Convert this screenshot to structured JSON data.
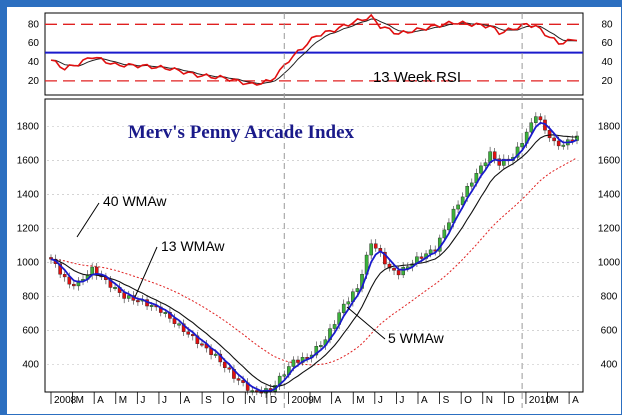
{
  "chart_data": {
    "type": "candlestick",
    "title": "Merv's Penny Arcade Index",
    "time_axis": {
      "labels": [
        "2008",
        "M",
        "A",
        "M",
        "J",
        "J",
        "A",
        "S",
        "O",
        "N",
        "D",
        "2009",
        "M",
        "A",
        "M",
        "J",
        "J",
        "A",
        "S",
        "O",
        "N",
        "D",
        "2010",
        "M",
        "A"
      ],
      "year_labels": [
        "2008",
        "2009",
        "2010"
      ],
      "weeks": 116
    },
    "price_axis": {
      "ticks": [
        400,
        600,
        800,
        1000,
        1200,
        1400,
        1600,
        1800
      ],
      "ylim": [
        240,
        1960
      ]
    },
    "rsi_axis": {
      "label": "13 Week RSI",
      "ticks": [
        20,
        40,
        60,
        80
      ],
      "ylim": [
        5,
        92
      ],
      "reference_lines": {
        "dashed_red": [
          20,
          80
        ],
        "solid_blue": 50
      }
    },
    "annotations": [
      {
        "text": "40 WMAw"
      },
      {
        "text": "13 WMAw"
      },
      {
        "text": "5 WMAw"
      }
    ],
    "colors": {
      "up": "#3bb03b",
      "down": "#e01010",
      "wma5": "#1a1acc",
      "wma13": "#111111",
      "wma40": "#e02020",
      "rsi": "#e01010",
      "rsi_avg": "#222222",
      "frame": "#2c6fc0"
    },
    "series": {
      "close_keypoints": [
        {
          "week": 0,
          "value": 1020
        },
        {
          "week": 4,
          "value": 870
        },
        {
          "week": 6,
          "value": 880
        },
        {
          "week": 9,
          "value": 960
        },
        {
          "week": 12,
          "value": 890
        },
        {
          "week": 16,
          "value": 800
        },
        {
          "week": 20,
          "value": 770
        },
        {
          "week": 24,
          "value": 720
        },
        {
          "week": 30,
          "value": 580
        },
        {
          "week": 36,
          "value": 450
        },
        {
          "week": 40,
          "value": 330
        },
        {
          "week": 44,
          "value": 240
        },
        {
          "week": 48,
          "value": 250
        },
        {
          "week": 50,
          "value": 320
        },
        {
          "week": 53,
          "value": 420
        },
        {
          "week": 56,
          "value": 440
        },
        {
          "week": 60,
          "value": 550
        },
        {
          "week": 64,
          "value": 750
        },
        {
          "week": 67,
          "value": 850
        },
        {
          "week": 70,
          "value": 1120
        },
        {
          "week": 72,
          "value": 1050
        },
        {
          "week": 74,
          "value": 960
        },
        {
          "week": 76,
          "value": 940
        },
        {
          "week": 80,
          "value": 1020
        },
        {
          "week": 84,
          "value": 1080
        },
        {
          "week": 88,
          "value": 1300
        },
        {
          "week": 92,
          "value": 1480
        },
        {
          "week": 96,
          "value": 1640
        },
        {
          "week": 98,
          "value": 1580
        },
        {
          "week": 101,
          "value": 1620
        },
        {
          "week": 104,
          "value": 1760
        },
        {
          "week": 106,
          "value": 1870
        },
        {
          "week": 108,
          "value": 1780
        },
        {
          "week": 110,
          "value": 1700
        },
        {
          "week": 112,
          "value": 1690
        },
        {
          "week": 114,
          "value": 1730
        },
        {
          "week": 115,
          "value": 1735
        }
      ],
      "rsi_keypoints": [
        {
          "week": 0,
          "value": 42
        },
        {
          "week": 3,
          "value": 33
        },
        {
          "week": 6,
          "value": 38
        },
        {
          "week": 9,
          "value": 46
        },
        {
          "week": 14,
          "value": 37
        },
        {
          "week": 20,
          "value": 36
        },
        {
          "week": 26,
          "value": 33
        },
        {
          "week": 32,
          "value": 26
        },
        {
          "week": 38,
          "value": 23
        },
        {
          "week": 44,
          "value": 16
        },
        {
          "week": 48,
          "value": 20
        },
        {
          "week": 50,
          "value": 30
        },
        {
          "week": 52,
          "value": 42
        },
        {
          "week": 55,
          "value": 55
        },
        {
          "week": 58,
          "value": 68
        },
        {
          "week": 62,
          "value": 74
        },
        {
          "week": 66,
          "value": 82
        },
        {
          "week": 70,
          "value": 88
        },
        {
          "week": 72,
          "value": 78
        },
        {
          "week": 76,
          "value": 70
        },
        {
          "week": 80,
          "value": 74
        },
        {
          "week": 84,
          "value": 78
        },
        {
          "week": 88,
          "value": 82
        },
        {
          "week": 92,
          "value": 80
        },
        {
          "week": 96,
          "value": 78
        },
        {
          "week": 98,
          "value": 71
        },
        {
          "week": 101,
          "value": 75
        },
        {
          "week": 104,
          "value": 80
        },
        {
          "week": 106,
          "value": 78
        },
        {
          "week": 108,
          "value": 70
        },
        {
          "week": 111,
          "value": 60
        },
        {
          "week": 114,
          "value": 63
        },
        {
          "week": 115,
          "value": 65
        }
      ]
    }
  }
}
